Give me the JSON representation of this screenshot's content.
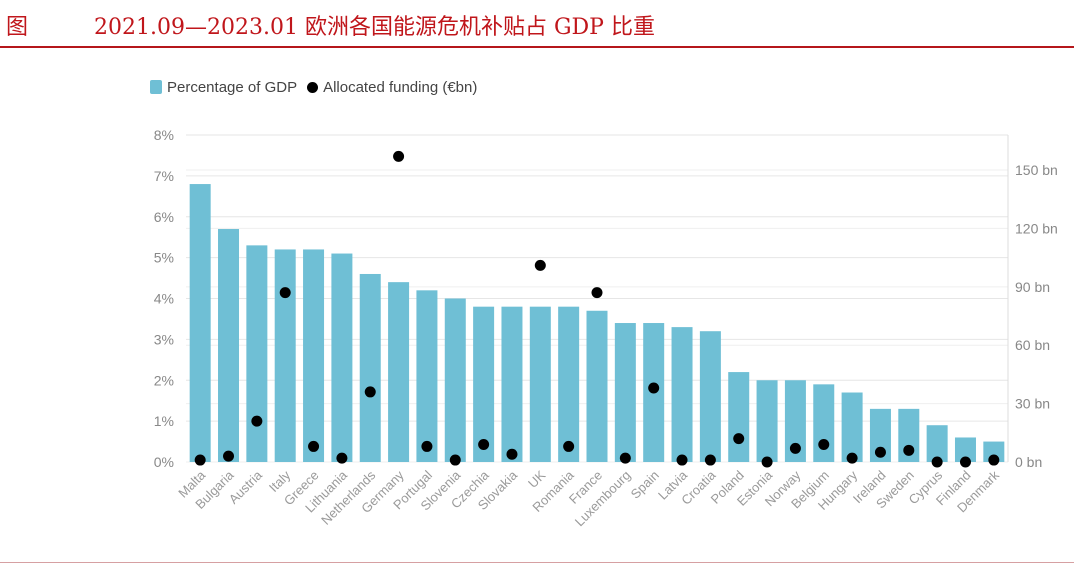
{
  "figure": {
    "label": "图",
    "title": "2021.09—2023.01 欧洲各国能源危机补贴占 GDP 比重"
  },
  "colors": {
    "bar": "#6fbfd5",
    "dot": "#000000",
    "title": "#c0161b"
  },
  "chart_data": {
    "type": "bar",
    "legend": [
      {
        "name": "Percentage of GDP",
        "kind": "bar"
      },
      {
        "name": "Allocated funding (€bn)",
        "kind": "dot"
      }
    ],
    "legend_position": "top-left",
    "grid": true,
    "categories": [
      "Malta",
      "Bulgaria",
      "Austria",
      "Italy",
      "Greece",
      "Lithuania",
      "Netherlands",
      "Germany",
      "Portugal",
      "Slovenia",
      "Czechia",
      "Slovakia",
      "UK",
      "Romania",
      "France",
      "Luxembourg",
      "Spain",
      "Latvia",
      "Croatia",
      "Poland",
      "Estonia",
      "Norway",
      "Belgium",
      "Hungary",
      "Ireland",
      "Sweden",
      "Cyprus",
      "Finland",
      "Denmark"
    ],
    "series": [
      {
        "name": "Percentage of GDP",
        "axis": "left",
        "values": [
          6.8,
          5.7,
          5.3,
          5.2,
          5.2,
          5.1,
          4.6,
          4.4,
          4.2,
          4.0,
          3.8,
          3.8,
          3.8,
          3.8,
          3.7,
          3.4,
          3.4,
          3.3,
          3.2,
          2.2,
          2.0,
          2.0,
          1.9,
          1.7,
          1.3,
          1.3,
          0.9,
          0.6,
          0.5
        ]
      },
      {
        "name": "Allocated funding (€bn)",
        "axis": "right",
        "values": [
          1,
          3,
          21,
          87,
          8,
          2,
          36,
          157,
          8,
          1,
          9,
          4,
          101,
          8,
          87,
          2,
          38,
          1,
          1,
          12,
          0,
          7,
          9,
          2,
          5,
          6,
          0,
          0,
          1
        ]
      }
    ],
    "y_left": {
      "min": 0,
      "max": 8,
      "ticks": [
        "0%",
        "1%",
        "2%",
        "3%",
        "4%",
        "5%",
        "6%",
        "7%",
        "8%"
      ]
    },
    "y_right": {
      "min": 0,
      "max": 168,
      "ticks": [
        "0 bn",
        "30 bn",
        "60 bn",
        "90 bn",
        "120 bn",
        "150 bn"
      ],
      "tick_values": [
        0,
        30,
        60,
        90,
        120,
        150
      ]
    }
  }
}
